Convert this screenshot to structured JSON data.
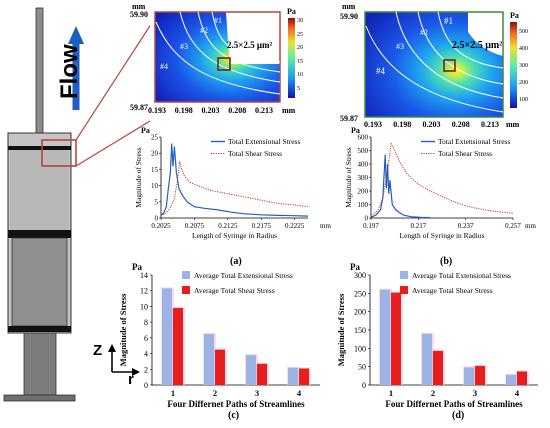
{
  "flow_label": "Flow",
  "axis_z_label": "Z",
  "axis_r_label": "r",
  "panel_labels": [
    "(a)",
    "(b)",
    "(c)",
    "(d)"
  ],
  "colors": {
    "extensional_blue": "#1f5fc4",
    "shear_red_dotted": "#c0392b",
    "bar_blue": "#9db3e6",
    "bar_red": "#e81e1e",
    "frame_red": "#b4463c",
    "syringe_gray": "#a9a9a9"
  },
  "heatmaps": [
    {
      "y_unit": "mm",
      "y_top": "59.90",
      "y_bottom": "59.87",
      "x_ticks": [
        "0.193",
        "0.198",
        "0.203",
        "0.208",
        "0.213"
      ],
      "x_unit": "mm",
      "box_label": "2.5×2.5 μm²",
      "streamlines": [
        "#1",
        "#2",
        "#3",
        "#4"
      ],
      "colorbar_unit": "Pa",
      "colorbar_ticks": [
        "30",
        "25",
        "20",
        "15",
        "10",
        "5"
      ]
    },
    {
      "y_unit": "mm",
      "y_top": "59.90",
      "y_bottom": "59.87",
      "x_ticks": [
        "0.193",
        "0.198",
        "0.203",
        "0.208",
        "0.213"
      ],
      "x_unit": "mm",
      "box_label": "2.5×2.5 μm²",
      "streamlines": [
        "#1",
        "#2",
        "#3",
        "#4"
      ],
      "colorbar_unit": "Pa",
      "colorbar_ticks": [
        "500",
        "400",
        "300",
        "200",
        "100"
      ]
    }
  ],
  "chart_data": [
    {
      "type": "line",
      "panel": "(a)",
      "unit": "Pa",
      "ylabel": "Magnitude of Stress",
      "xlabel": "Length of Syringe in Radius",
      "x_unit": "mm",
      "ylim": [
        0,
        25
      ],
      "yticks": [
        "0",
        "5",
        "10",
        "15",
        "20",
        "25"
      ],
      "xlim": [
        0.2025,
        0.2245
      ],
      "xticks": [
        "0.2025",
        "0.2075",
        "0.2125",
        "0.2175",
        "0.2225"
      ],
      "series": [
        {
          "name": "Total Extensional Stress",
          "style": "solid",
          "color": "#1f5fc4",
          "x": [
            0.2025,
            0.2029,
            0.2033,
            0.2036,
            0.2039,
            0.2041,
            0.2043,
            0.2045,
            0.2048,
            0.2052,
            0.2057,
            0.2064,
            0.2075,
            0.209,
            0.211,
            0.213,
            0.215,
            0.2175,
            0.22,
            0.2225,
            0.2245
          ],
          "y": [
            0.8,
            1.5,
            3.5,
            9.0,
            14.0,
            23.0,
            16.0,
            22.0,
            14.0,
            9.0,
            7.0,
            5.0,
            3.5,
            3.0,
            2.5,
            1.8,
            1.3,
            1.0,
            0.8,
            0.7,
            0.6
          ]
        },
        {
          "name": "Total Shear Stress",
          "style": "dotted",
          "color": "#c0392b",
          "x": [
            0.2025,
            0.203,
            0.2035,
            0.204,
            0.2045,
            0.205,
            0.2053,
            0.2056,
            0.206,
            0.2068,
            0.208,
            0.21,
            0.2125,
            0.215,
            0.2175,
            0.22,
            0.2225,
            0.2245
          ],
          "y": [
            0.8,
            1.2,
            2.0,
            3.5,
            6.0,
            12.0,
            17.5,
            15.0,
            13.0,
            11.0,
            10.0,
            8.5,
            7.5,
            6.5,
            5.5,
            4.5,
            4.0,
            3.5
          ]
        }
      ]
    },
    {
      "type": "line",
      "panel": "(b)",
      "unit": "Pa",
      "ylabel": "Magnitude of Stress",
      "xlabel": "Length of Syringe in Radius",
      "x_unit": "mm",
      "ylim": [
        0,
        600
      ],
      "yticks": [
        "0",
        "100",
        "200",
        "300",
        "400",
        "500",
        "600"
      ],
      "xlim": [
        0.197,
        0.257
      ],
      "xticks": [
        "0.197",
        "0.217",
        "0.237",
        "0.257"
      ],
      "series": [
        {
          "name": "Total Extensional Stress",
          "style": "solid",
          "color": "#1f5fc4",
          "x": [
            0.197,
            0.199,
            0.201,
            0.202,
            0.203,
            0.2035,
            0.204,
            0.2045,
            0.205,
            0.206,
            0.2075,
            0.209,
            0.211,
            0.214,
            0.218,
            0.222
          ],
          "y": [
            5,
            20,
            60,
            150,
            470,
            220,
            400,
            180,
            280,
            100,
            60,
            40,
            20,
            10,
            5,
            3
          ]
        },
        {
          "name": "Total Shear Stress",
          "style": "dotted",
          "color": "#c0392b",
          "x": [
            0.197,
            0.2,
            0.202,
            0.204,
            0.2055,
            0.207,
            0.209,
            0.212,
            0.217,
            0.222,
            0.227,
            0.232,
            0.237,
            0.242,
            0.247,
            0.252,
            0.257
          ],
          "y": [
            10,
            60,
            150,
            350,
            550,
            500,
            420,
            330,
            250,
            200,
            160,
            120,
            90,
            70,
            55,
            45,
            35
          ]
        }
      ]
    },
    {
      "type": "bar",
      "panel": "(c)",
      "unit": "Pa",
      "ylabel": "Magnitude of Stress",
      "xlabel": "Four Differnet Paths of Streamlines",
      "categories": [
        "1",
        "2",
        "3",
        "4"
      ],
      "ylim": [
        0,
        14
      ],
      "yticks": [
        "0",
        "2",
        "4",
        "6",
        "8",
        "10",
        "12",
        "14"
      ],
      "series": [
        {
          "name": "Average Total Extensional Stress",
          "color": "#9db3e6",
          "values": [
            12.3,
            6.5,
            3.8,
            2.2
          ]
        },
        {
          "name": "Average Total Shear Stress",
          "color": "#e81e1e",
          "values": [
            9.8,
            4.5,
            2.7,
            2.1
          ]
        }
      ]
    },
    {
      "type": "bar",
      "panel": "(d)",
      "unit": "Pa",
      "ylabel": "Magnitude of Stress",
      "xlabel": "Four Differnet Paths of Streamlines",
      "categories": [
        "1",
        "2",
        "3",
        "4"
      ],
      "ylim": [
        0,
        300
      ],
      "yticks": [
        "0",
        "50",
        "100",
        "150",
        "200",
        "250",
        "300"
      ],
      "series": [
        {
          "name": "Average Total Extensional Stress",
          "color": "#9db3e6",
          "values": [
            260,
            140,
            48,
            28
          ]
        },
        {
          "name": "Average Total Shear Stress",
          "color": "#e81e1e",
          "values": [
            252,
            93,
            52,
            37
          ]
        }
      ]
    }
  ]
}
